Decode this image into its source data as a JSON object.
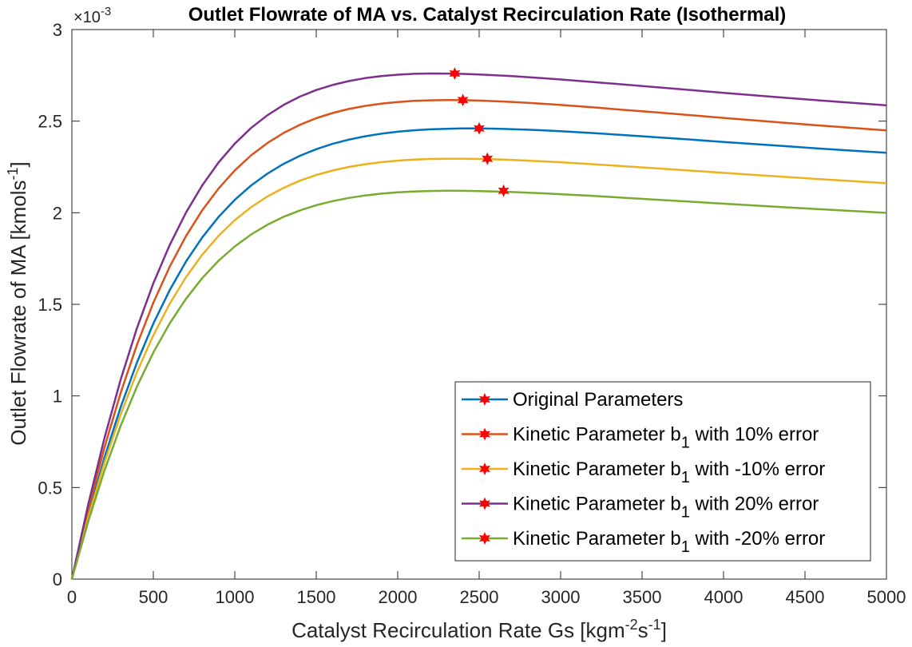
{
  "chart_data": {
    "type": "line",
    "title": "Outlet Flowrate of MA vs. Catalyst Recirculation Rate (Isothermal)",
    "xlabel": {
      "main": "Catalyst Recirculation Rate Gs [kgm",
      "sup1": "-2",
      "mid": "s",
      "sup2": "-1",
      "end": "]"
    },
    "ylabel": {
      "main": "Outlet Flowrate of MA [kmols",
      "sup": "-1",
      "end": "]"
    },
    "y_exponent": {
      "prefix": "×10",
      "power": "-3"
    },
    "xlim": [
      0,
      5000
    ],
    "ylim": [
      0,
      3
    ],
    "xticks": [
      "0",
      "500",
      "1000",
      "1500",
      "2000",
      "2500",
      "3000",
      "3500",
      "4000",
      "4500",
      "5000"
    ],
    "yticks": [
      "0",
      "0.5",
      "1",
      "1.5",
      "2",
      "2.5",
      "3"
    ],
    "grid": false,
    "legend_position": "bottom-right",
    "x": [
      0,
      100,
      200,
      300,
      400,
      500,
      600,
      700,
      800,
      900,
      1000,
      1100,
      1200,
      1300,
      1400,
      1500,
      1600,
      1700,
      1800,
      1900,
      2000,
      2100,
      2200,
      2300,
      2400,
      2500,
      2600,
      2700,
      2800,
      2900,
      3000,
      3200,
      3400,
      3600,
      3800,
      4000,
      4200,
      4400,
      4600,
      4800,
      5000
    ],
    "series": [
      {
        "name": "Original Parameters",
        "color": "#0072BD",
        "values": [
          0,
          0.3262,
          0.6182,
          0.8766,
          1.1033,
          1.3003,
          1.4701,
          1.6154,
          1.7389,
          1.843,
          1.9304,
          2.0032,
          2.0637,
          2.1137,
          2.1546,
          2.188,
          2.215,
          2.2366,
          2.2537,
          2.267,
          2.277,
          2.2843,
          2.2892,
          2.2922,
          2.2935,
          2.2935,
          2.2923,
          2.2901,
          2.2871,
          2.2835,
          2.2794,
          2.2699,
          2.2594,
          2.2482,
          2.2367,
          2.2251,
          2.2136,
          2.2022,
          2.191,
          2.1801,
          2.1696
        ],
        "scale": 1.0
      },
      {
        "name": "Kinetic Parameter b_1 with 10% error",
        "label_parts": [
          "Kinetic Parameter b",
          "1",
          " with 10% error"
        ],
        "color": "#D95319",
        "values": [
          0,
          0.3516,
          0.6662,
          0.9445,
          1.1883,
          1.3998,
          1.5816,
          1.7367,
          1.8679,
          1.9781,
          2.07,
          2.1461,
          2.2087,
          2.2598,
          2.3012,
          2.3343,
          2.3606,
          2.3811,
          2.3967,
          2.4084,
          2.4166,
          2.4221,
          2.4251,
          2.4262,
          2.4256,
          2.4237,
          2.4207,
          2.4168,
          2.4122,
          2.407,
          2.4014,
          2.3892,
          2.3762,
          2.3629,
          2.3494,
          2.3359,
          2.3226,
          2.3096,
          2.2969,
          2.2846,
          2.2727
        ]
      },
      {
        "name": "Kinetic Parameter b_1 with -10% error",
        "label_parts": [
          "Kinetic Parameter b",
          "1",
          " with -10% error"
        ],
        "color": "#EDB120",
        "values": [
          0,
          0.3041,
          0.5749,
          0.8137,
          1.0222,
          1.2026,
          1.3572,
          1.4888,
          1.5999,
          1.693,
          1.7705,
          1.8346,
          1.8873,
          1.9303,
          1.9652,
          1.9932,
          2.0155,
          2.0331,
          2.0466,
          2.0568,
          2.0642,
          2.0692,
          2.0723,
          2.0737,
          2.0737,
          2.0726,
          2.0706,
          2.0678,
          2.0643,
          2.0604,
          2.0561,
          2.0466,
          2.0363,
          2.0256,
          2.0148,
          2.0039,
          1.9932,
          1.9827,
          1.9724,
          1.9624,
          1.9527
        ]
      },
      {
        "name": "Kinetic Parameter b_1 with 20% error",
        "label_parts": [
          "Kinetic Parameter b",
          "1",
          " with 20% error"
        ],
        "color": "#7E2F8E",
        "values": [
          0,
          0.3768,
          0.7139,
          1.0118,
          1.2724,
          1.4979,
          1.691,
          1.8553,
          1.9937,
          2.1095,
          2.2055,
          2.2845,
          2.3491,
          2.4015,
          2.4434,
          2.4766,
          2.5024,
          2.5222,
          2.5368,
          2.5474,
          2.5544,
          2.5587,
          2.5603,
          2.5601,
          2.5584,
          2.5554,
          2.5516,
          2.547,
          2.5418,
          2.5361,
          2.5301,
          2.5172,
          2.5037,
          2.49,
          2.4762,
          2.4626,
          2.4492,
          2.4361,
          2.4234,
          2.4111,
          2.3992
        ]
      },
      {
        "name": "Kinetic Parameter b_1 with -20% error",
        "label_parts": [
          "Kinetic Parameter b",
          "1",
          " with -20% error"
        ],
        "color": "#77AC30",
        "values": [
          0,
          0.279,
          0.5271,
          0.7455,
          0.9358,
          1.1002,
          1.2409,
          1.3604,
          1.4611,
          1.5454,
          1.6154,
          1.6731,
          1.7205,
          1.7591,
          1.7903,
          1.8153,
          1.8351,
          1.8506,
          1.8625,
          1.8714,
          1.8778,
          1.882,
          1.8845,
          1.8855,
          1.8853,
          1.8841,
          1.8821,
          1.8794,
          1.8762,
          1.8727,
          1.8688,
          1.8603,
          1.8512,
          1.8418,
          1.8323,
          1.8228,
          1.8135,
          1.8043,
          1.7954,
          1.7867,
          1.7783
        ]
      }
    ],
    "markers": [
      {
        "series": 0,
        "x": 2500,
        "y": 2.46
      },
      {
        "series": 1,
        "x": 2400,
        "y": 2.615
      },
      {
        "series": 2,
        "x": 2550,
        "y": 2.295
      },
      {
        "series": 3,
        "x": 2350,
        "y": 2.76
      },
      {
        "series": 4,
        "x": 2650,
        "y": 2.12
      }
    ],
    "marker_color": "#FF0000"
  }
}
